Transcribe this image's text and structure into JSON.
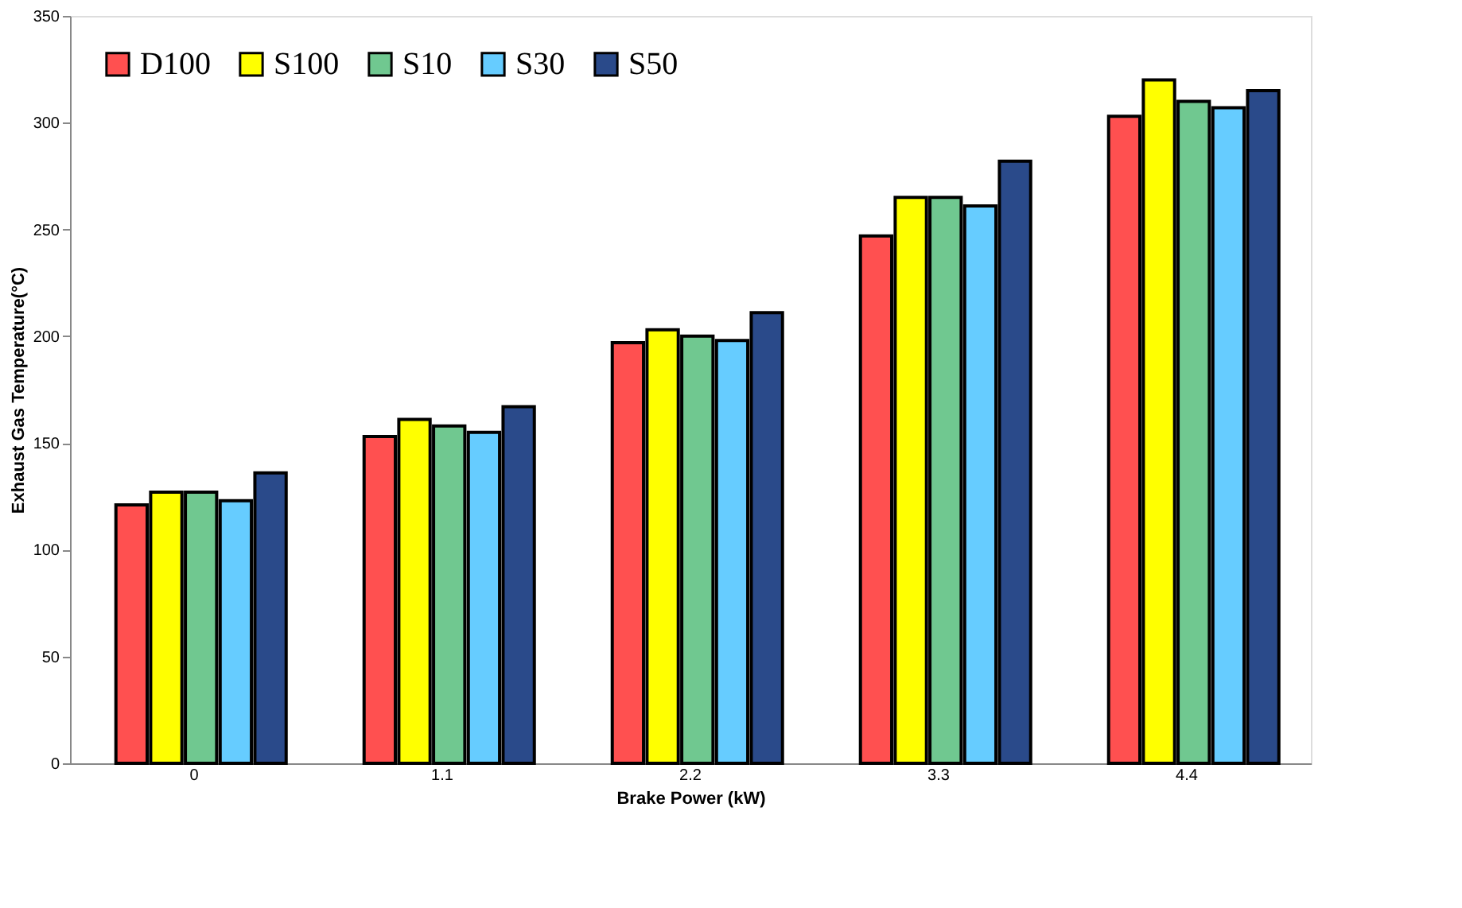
{
  "chart_data": {
    "type": "bar",
    "xlabel": "Brake Power (kW)",
    "ylabel": "Exhaust Gas Temperature(°C)",
    "categories": [
      "0",
      "1.1",
      "2.2",
      "3.3",
      "4.4"
    ],
    "series": [
      {
        "name": "D100",
        "color": "#ff5050",
        "values": [
          121,
          153,
          197,
          247,
          303
        ]
      },
      {
        "name": "S100",
        "color": "#ffff00",
        "values": [
          127,
          161,
          203,
          265,
          320
        ]
      },
      {
        "name": "S10",
        "color": "#70c890",
        "values": [
          127,
          158,
          200,
          265,
          310
        ]
      },
      {
        "name": "S30",
        "color": "#66ccff",
        "values": [
          123,
          155,
          198,
          261,
          307
        ]
      },
      {
        "name": "S50",
        "color": "#2a4a8a",
        "values": [
          136,
          167,
          211,
          282,
          315
        ]
      }
    ],
    "ylim": [
      0,
      350
    ],
    "yticks": [
      0,
      50,
      100,
      150,
      200,
      250,
      300,
      350
    ],
    "grid": false,
    "legend": "top left"
  }
}
